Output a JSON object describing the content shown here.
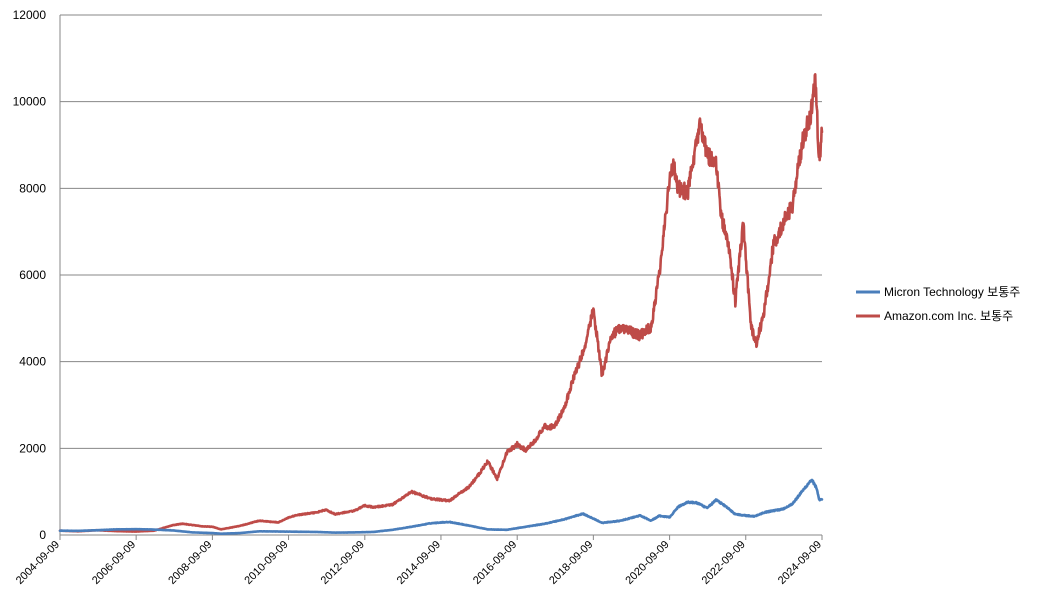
{
  "chart_data": {
    "type": "line",
    "title": "",
    "xlabel": "",
    "ylabel": "",
    "ylim": [
      0,
      12000
    ],
    "yticks": [
      0,
      2000,
      4000,
      6000,
      8000,
      10000,
      12000
    ],
    "xlim": [
      "2004-09-09",
      "2024-09-09"
    ],
    "xticks": [
      "2004-09-09",
      "2006-09-09",
      "2008-09-09",
      "2010-09-09",
      "2012-09-09",
      "2014-09-09",
      "2016-09-09",
      "2018-09-09",
      "2020-09-09",
      "2022-09-09",
      "2024-09-09"
    ],
    "grid": true,
    "legend_position": "right",
    "series": [
      {
        "name": "Micron Technology 보통주",
        "color": "#4a7ebb",
        "points": [
          [
            "2004-09-09",
            100
          ],
          [
            "2005-03-01",
            95
          ],
          [
            "2005-09-01",
            110
          ],
          [
            "2006-03-01",
            130
          ],
          [
            "2006-09-09",
            135
          ],
          [
            "2007-03-01",
            125
          ],
          [
            "2007-09-01",
            105
          ],
          [
            "2008-03-01",
            60
          ],
          [
            "2008-09-09",
            45
          ],
          [
            "2008-12-01",
            30
          ],
          [
            "2009-06-01",
            45
          ],
          [
            "2009-12-01",
            85
          ],
          [
            "2010-06-01",
            80
          ],
          [
            "2010-12-01",
            75
          ],
          [
            "2011-06-01",
            70
          ],
          [
            "2011-12-01",
            55
          ],
          [
            "2012-06-01",
            60
          ],
          [
            "2012-12-01",
            70
          ],
          [
            "2013-06-01",
            120
          ],
          [
            "2013-12-01",
            190
          ],
          [
            "2014-06-01",
            270
          ],
          [
            "2014-09-09",
            290
          ],
          [
            "2014-12-01",
            300
          ],
          [
            "2015-06-01",
            220
          ],
          [
            "2015-12-01",
            130
          ],
          [
            "2016-06-01",
            120
          ],
          [
            "2016-12-01",
            190
          ],
          [
            "2017-06-01",
            260
          ],
          [
            "2017-12-01",
            360
          ],
          [
            "2018-06-01",
            490
          ],
          [
            "2018-09-09",
            380
          ],
          [
            "2018-12-01",
            280
          ],
          [
            "2019-06-01",
            330
          ],
          [
            "2019-12-01",
            450
          ],
          [
            "2020-03-15",
            330
          ],
          [
            "2020-06-01",
            440
          ],
          [
            "2020-09-09",
            410
          ],
          [
            "2020-12-01",
            650
          ],
          [
            "2021-03-01",
            760
          ],
          [
            "2021-06-01",
            740
          ],
          [
            "2021-09-01",
            620
          ],
          [
            "2021-12-01",
            810
          ],
          [
            "2022-03-01",
            660
          ],
          [
            "2022-06-01",
            480
          ],
          [
            "2022-09-09",
            450
          ],
          [
            "2022-12-01",
            430
          ],
          [
            "2023-03-01",
            520
          ],
          [
            "2023-06-01",
            560
          ],
          [
            "2023-09-01",
            600
          ],
          [
            "2023-12-01",
            720
          ],
          [
            "2024-03-01",
            1000
          ],
          [
            "2024-06-01",
            1280
          ],
          [
            "2024-07-15",
            1100
          ],
          [
            "2024-08-15",
            800
          ],
          [
            "2024-09-09",
            820
          ]
        ]
      },
      {
        "name": "Amazon.com Inc. 보통주",
        "color": "#be4b48",
        "points": [
          [
            "2004-09-09",
            100
          ],
          [
            "2005-03-01",
            85
          ],
          [
            "2005-09-01",
            110
          ],
          [
            "2006-03-01",
            90
          ],
          [
            "2006-09-09",
            80
          ],
          [
            "2007-03-01",
            100
          ],
          [
            "2007-09-01",
            230
          ],
          [
            "2007-12-01",
            260
          ],
          [
            "2008-06-01",
            200
          ],
          [
            "2008-09-09",
            190
          ],
          [
            "2008-12-01",
            130
          ],
          [
            "2009-06-01",
            210
          ],
          [
            "2009-12-01",
            330
          ],
          [
            "2010-06-01",
            290
          ],
          [
            "2010-09-09",
            400
          ],
          [
            "2010-12-01",
            460
          ],
          [
            "2011-06-01",
            520
          ],
          [
            "2011-09-01",
            580
          ],
          [
            "2011-12-01",
            480
          ],
          [
            "2012-06-01",
            560
          ],
          [
            "2012-09-09",
            680
          ],
          [
            "2012-12-01",
            640
          ],
          [
            "2013-06-01",
            700
          ],
          [
            "2013-12-01",
            1000
          ],
          [
            "2014-06-01",
            840
          ],
          [
            "2014-09-09",
            810
          ],
          [
            "2014-12-01",
            790
          ],
          [
            "2015-03-01",
            950
          ],
          [
            "2015-06-01",
            1100
          ],
          [
            "2015-09-09",
            1400
          ],
          [
            "2015-12-01",
            1700
          ],
          [
            "2016-03-01",
            1300
          ],
          [
            "2016-06-01",
            1900
          ],
          [
            "2016-09-09",
            2100
          ],
          [
            "2016-12-01",
            1950
          ],
          [
            "2017-03-01",
            2200
          ],
          [
            "2017-06-01",
            2500
          ],
          [
            "2017-09-01",
            2500
          ],
          [
            "2017-12-01",
            2900
          ],
          [
            "2018-03-01",
            3600
          ],
          [
            "2018-06-01",
            4200
          ],
          [
            "2018-09-09",
            5200
          ],
          [
            "2018-12-01",
            3700
          ],
          [
            "2019-03-01",
            4600
          ],
          [
            "2019-06-01",
            4800
          ],
          [
            "2019-09-01",
            4700
          ],
          [
            "2019-12-01",
            4600
          ],
          [
            "2020-03-15",
            4800
          ],
          [
            "2020-06-01",
            6000
          ],
          [
            "2020-09-09",
            8200
          ],
          [
            "2020-10-15",
            8600
          ],
          [
            "2020-12-01",
            8000
          ],
          [
            "2021-03-01",
            7900
          ],
          [
            "2021-07-01",
            9500
          ],
          [
            "2021-09-01",
            8800
          ],
          [
            "2021-12-01",
            8500
          ],
          [
            "2022-01-15",
            7400
          ],
          [
            "2022-04-01",
            6600
          ],
          [
            "2022-06-01",
            5400
          ],
          [
            "2022-08-15",
            7200
          ],
          [
            "2022-09-09",
            6400
          ],
          [
            "2022-11-01",
            4800
          ],
          [
            "2022-12-20",
            4400
          ],
          [
            "2023-03-01",
            5100
          ],
          [
            "2023-06-01",
            6700
          ],
          [
            "2023-09-01",
            7200
          ],
          [
            "2023-12-01",
            7600
          ],
          [
            "2024-03-01",
            9000
          ],
          [
            "2024-06-01",
            9800
          ],
          [
            "2024-07-10",
            10500
          ],
          [
            "2024-08-10",
            8600
          ],
          [
            "2024-09-09",
            9300
          ]
        ]
      }
    ]
  }
}
